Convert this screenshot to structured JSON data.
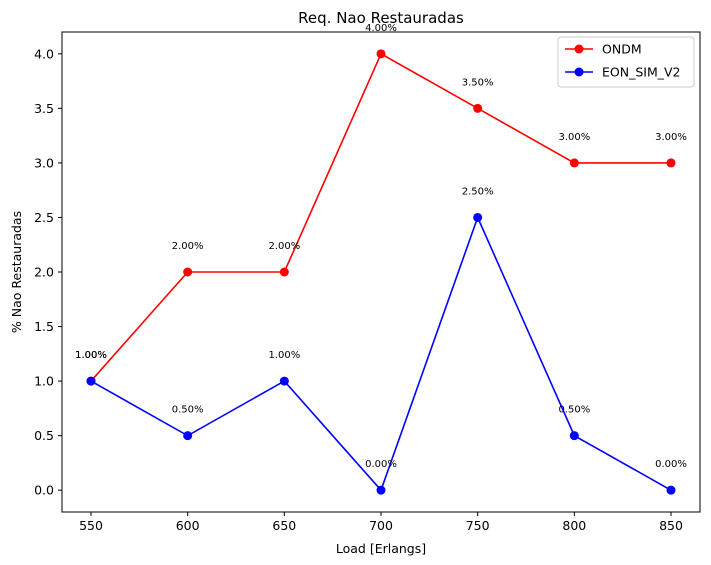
{
  "chart_data": {
    "type": "line",
    "title": "Req. Nao Restauradas",
    "xlabel": "Load [Erlangs]",
    "ylabel": "% Nao Restauradas",
    "x": [
      550,
      600,
      650,
      700,
      750,
      800,
      850
    ],
    "xticks": [
      "550",
      "600",
      "650",
      "700",
      "750",
      "800",
      "850"
    ],
    "yticks": [
      "0.0",
      "0.5",
      "1.0",
      "1.5",
      "2.0",
      "2.5",
      "3.0",
      "3.5",
      "4.0"
    ],
    "ylim": [
      -0.2,
      4.2
    ],
    "xlim": [
      535,
      865
    ],
    "grid": false,
    "legend_position": "top-right",
    "series": [
      {
        "name": "ONDM",
        "color": "#ff0000",
        "values": [
          1.0,
          2.0,
          2.0,
          4.0,
          3.5,
          3.0,
          3.0
        ],
        "labels": [
          "1.00%",
          "2.00%",
          "2.00%",
          "4.00%",
          "3.50%",
          "3.00%",
          "3.00%"
        ]
      },
      {
        "name": "EON_SIM_V2",
        "color": "#0000ff",
        "values": [
          1.0,
          0.5,
          1.0,
          0.0,
          2.5,
          0.5,
          0.0
        ],
        "labels": [
          "1.00%",
          "0.50%",
          "1.00%",
          "0.00%",
          "2.50%",
          "0.50%",
          "0.00%"
        ]
      }
    ]
  }
}
